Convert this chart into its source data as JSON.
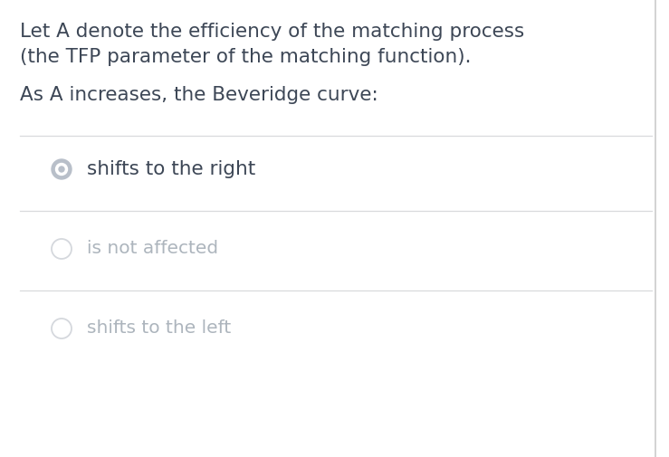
{
  "background_color": "#ffffff",
  "text_color_dark": "#3d4756",
  "text_color_light": "#adb5bd",
  "line_color": "#d8dadc",
  "right_border_color": "#cccccc",
  "paragraph1_line1": "Let A denote the efficiency of the matching process",
  "paragraph1_line2": "(the TFP parameter of the matching function).",
  "paragraph2": "As A increases, the Beveridge curve:",
  "options": [
    {
      "label": "shifts to the right",
      "selected": true
    },
    {
      "label": "is not affected",
      "selected": false
    },
    {
      "label": "shifts to the left",
      "selected": false
    }
  ],
  "font_size_paragraph": 15.5,
  "font_size_option_selected": 15.5,
  "font_size_option_unselected": 14.5,
  "radio_selected_outer_color": "#b8bfc9",
  "radio_selected_inner_color": "#ffffff",
  "radio_selected_dot_color": "#b8bfc9",
  "radio_unselected_color": "#d5d8dd"
}
